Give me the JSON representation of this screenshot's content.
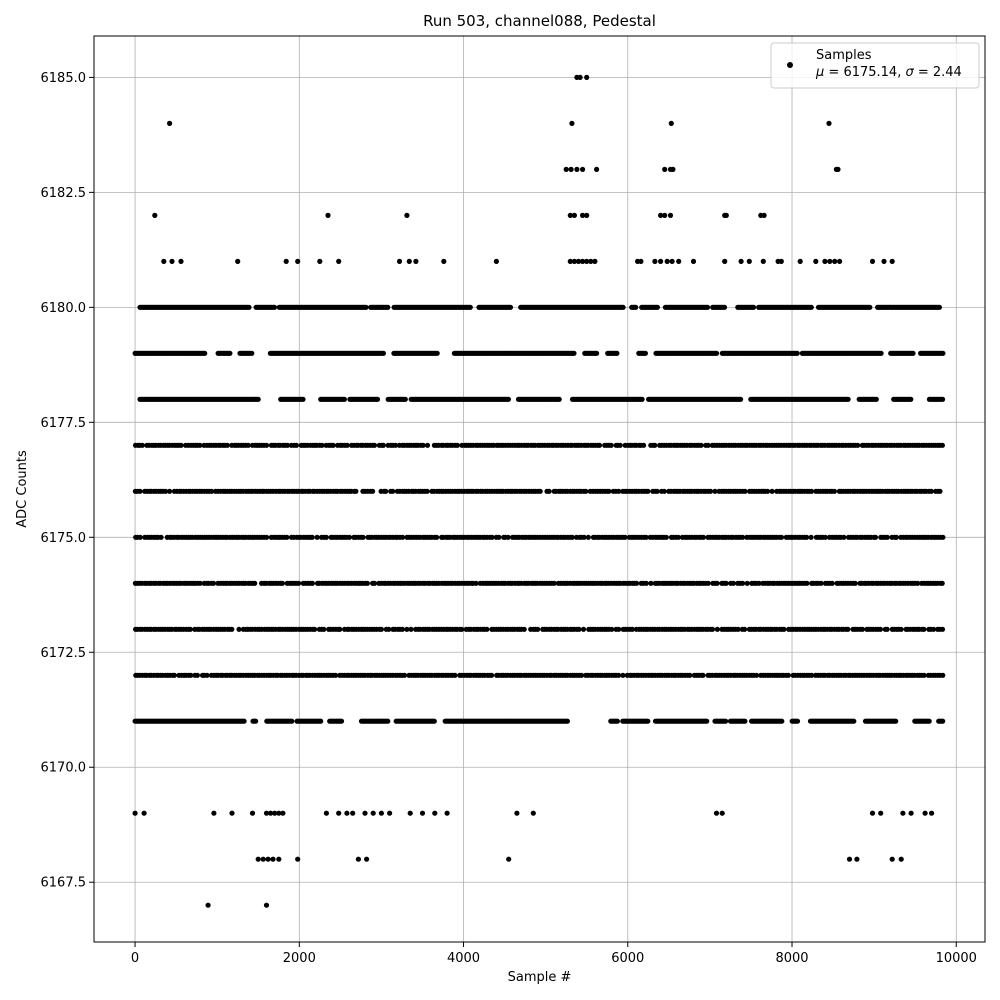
{
  "chart_data": {
    "type": "scatter",
    "title": "Run 503, channel088, Pedestal",
    "xlabel": "Sample #",
    "ylabel": "ADC Counts",
    "xlim": [
      -500,
      10350
    ],
    "ylim": [
      6166.2,
      6185.9
    ],
    "xticks": [
      0,
      2000,
      4000,
      6000,
      8000,
      10000
    ],
    "yticks": [
      6167.5,
      6170.0,
      6172.5,
      6175.0,
      6177.5,
      6180.0,
      6182.5,
      6185.0
    ],
    "x_tick_labels": [
      "0",
      "2000",
      "4000",
      "6000",
      "8000",
      "10000"
    ],
    "y_tick_labels": [
      "6167.5",
      "6170.0",
      "6172.5",
      "6175.0",
      "6177.5",
      "6180.0",
      "6182.5",
      "6185.0"
    ],
    "grid": true,
    "legend_position": "top-right",
    "marker_color": "#000000",
    "legend": {
      "series_label": "Samples",
      "stats_mu_prefix": "μ",
      "stats_mu_value": " = 6175.14, ",
      "stats_sigma_prefix": "σ",
      "stats_sigma_value": " = 2.44"
    },
    "series": [
      {
        "name": "Samples",
        "mean": 6175.14,
        "sigma": 2.44,
        "sample_count": 9850,
        "dense_levels": [
          {
            "y": 6177,
            "x_range": [
              0,
              9850
            ]
          },
          {
            "y": 6176,
            "x_range": [
              0,
              9850
            ]
          },
          {
            "y": 6175,
            "x_range": [
              0,
              9850
            ]
          },
          {
            "y": 6174,
            "x_range": [
              0,
              9850
            ]
          },
          {
            "y": 6173,
            "x_range": [
              0,
              9850
            ]
          },
          {
            "y": 6172,
            "x_range": [
              0,
              9850
            ]
          }
        ],
        "medium_levels": [
          {
            "y": 6178,
            "x_range": [
              60,
              9850
            ]
          },
          {
            "y": 6179,
            "x_range": [
              0,
              9850
            ]
          },
          {
            "y": 6171,
            "x_range": [
              0,
              9850
            ],
            "gap": [
              5200,
              5650
            ]
          },
          {
            "y": 6180,
            "x_range": [
              60,
              9800
            ],
            "gap": [
              5800,
              6000
            ]
          }
        ],
        "sparse_points": [
          [
            0,
            6169
          ],
          [
            110,
            6169
          ],
          [
            960,
            6169
          ],
          [
            1180,
            6169
          ],
          [
            1430,
            6169
          ],
          [
            1600,
            6169
          ],
          [
            1650,
            6169
          ],
          [
            1700,
            6169
          ],
          [
            1750,
            6169
          ],
          [
            1800,
            6169
          ],
          [
            2330,
            6169
          ],
          [
            2480,
            6169
          ],
          [
            2580,
            6169
          ],
          [
            2650,
            6169
          ],
          [
            2800,
            6169
          ],
          [
            2900,
            6169
          ],
          [
            3000,
            6169
          ],
          [
            3100,
            6169
          ],
          [
            3350,
            6169
          ],
          [
            3500,
            6169
          ],
          [
            3650,
            6169
          ],
          [
            3800,
            6169
          ],
          [
            4650,
            6169
          ],
          [
            4850,
            6169
          ],
          [
            7080,
            6169
          ],
          [
            7150,
            6169
          ],
          [
            8980,
            6169
          ],
          [
            9080,
            6169
          ],
          [
            9350,
            6169
          ],
          [
            9450,
            6169
          ],
          [
            9620,
            6169
          ],
          [
            9700,
            6169
          ],
          [
            1500,
            6168
          ],
          [
            1560,
            6168
          ],
          [
            1620,
            6168
          ],
          [
            1680,
            6168
          ],
          [
            1750,
            6168
          ],
          [
            1980,
            6168
          ],
          [
            2720,
            6168
          ],
          [
            2820,
            6168
          ],
          [
            4550,
            6168
          ],
          [
            8700,
            6168
          ],
          [
            8790,
            6168
          ],
          [
            9220,
            6168
          ],
          [
            9330,
            6168
          ],
          [
            890,
            6167
          ],
          [
            1600,
            6167
          ],
          [
            240,
            6182
          ],
          [
            2350,
            6182
          ],
          [
            3310,
            6182
          ],
          [
            5300,
            6182
          ],
          [
            5350,
            6182
          ],
          [
            5450,
            6182
          ],
          [
            5500,
            6182
          ],
          [
            6400,
            6182
          ],
          [
            6450,
            6182
          ],
          [
            6520,
            6182
          ],
          [
            7180,
            6182
          ],
          [
            7200,
            6182
          ],
          [
            7620,
            6182
          ],
          [
            7660,
            6182
          ],
          [
            5250,
            6183
          ],
          [
            5310,
            6183
          ],
          [
            5380,
            6183
          ],
          [
            5450,
            6183
          ],
          [
            5620,
            6183
          ],
          [
            6450,
            6183
          ],
          [
            6520,
            6183
          ],
          [
            6550,
            6183
          ],
          [
            8540,
            6183
          ],
          [
            8560,
            6183
          ],
          [
            420,
            6184
          ],
          [
            5320,
            6184
          ],
          [
            6530,
            6184
          ],
          [
            8450,
            6184
          ],
          [
            5380,
            6185
          ],
          [
            5420,
            6185
          ],
          [
            5500,
            6185
          ],
          [
            350,
            6181
          ],
          [
            450,
            6181
          ],
          [
            560,
            6181
          ],
          [
            1250,
            6181
          ],
          [
            1840,
            6181
          ],
          [
            1980,
            6181
          ],
          [
            2250,
            6181
          ],
          [
            2480,
            6181
          ],
          [
            3220,
            6181
          ],
          [
            3340,
            6181
          ],
          [
            3420,
            6181
          ],
          [
            3760,
            6181
          ],
          [
            4400,
            6181
          ],
          [
            5300,
            6181
          ],
          [
            5350,
            6181
          ],
          [
            5400,
            6181
          ],
          [
            5450,
            6181
          ],
          [
            5500,
            6181
          ],
          [
            5550,
            6181
          ],
          [
            5600,
            6181
          ],
          [
            6120,
            6181
          ],
          [
            6160,
            6181
          ],
          [
            6330,
            6181
          ],
          [
            6400,
            6181
          ],
          [
            6480,
            6181
          ],
          [
            6540,
            6181
          ],
          [
            6620,
            6181
          ],
          [
            6800,
            6181
          ],
          [
            7180,
            6181
          ],
          [
            7380,
            6181
          ],
          [
            7480,
            6181
          ],
          [
            7650,
            6181
          ],
          [
            7830,
            6181
          ],
          [
            7870,
            6181
          ],
          [
            8100,
            6181
          ],
          [
            8290,
            6181
          ],
          [
            8400,
            6181
          ],
          [
            8460,
            6181
          ],
          [
            8520,
            6181
          ],
          [
            8580,
            6181
          ],
          [
            8980,
            6181
          ],
          [
            9120,
            6181
          ],
          [
            9220,
            6181
          ]
        ]
      }
    ]
  }
}
